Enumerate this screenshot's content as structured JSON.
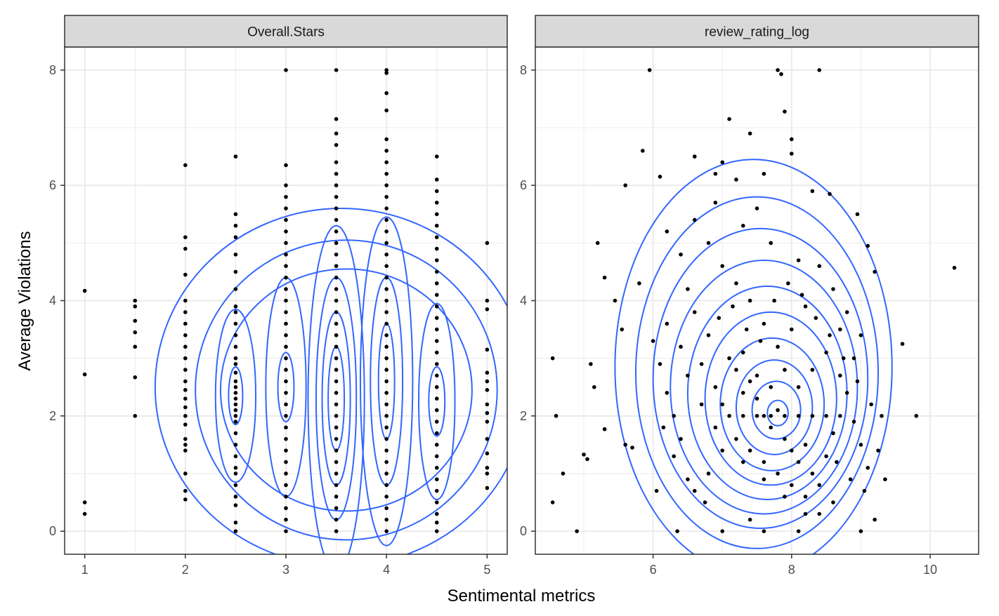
{
  "chart_data": {
    "type": "scatter",
    "xlabel": "Sentimental metrics",
    "ylabel": "Average Violations",
    "grid": true,
    "colors": {
      "points": "#000000",
      "contours": "#3366ff",
      "strip_fill": "#d9d9d9",
      "grid": "#ebebeb",
      "panel_border": "#333333"
    },
    "panels": [
      {
        "strip": "Overall.Stars",
        "xlim": [
          0.8,
          5.2
        ],
        "ylim": [
          -0.4,
          8.4
        ],
        "x_ticks": [
          1,
          2,
          3,
          4,
          5
        ],
        "x_tick_labels": [
          "1",
          "2",
          "3",
          "4",
          "5"
        ],
        "y_ticks": [
          0,
          2,
          4,
          6,
          8
        ],
        "y_tick_labels": [
          "0",
          "2",
          "4",
          "6",
          "8"
        ],
        "columns": [
          {
            "x": 1,
            "y": [
              4.17,
              2.72,
              0.5,
              0.3
            ]
          },
          {
            "x": 1.5,
            "y": [
              4.0,
              3.9,
              3.65,
              3.45,
              3.2,
              2.67,
              2.0
            ]
          },
          {
            "x": 2,
            "y": [
              6.35,
              5.1,
              4.9,
              4.45,
              4.0,
              3.8,
              3.6,
              3.4,
              3.2,
              3.0,
              2.8,
              2.6,
              2.45,
              2.3,
              2.15,
              2.0,
              1.85,
              1.6,
              1.5,
              1.4,
              1.0,
              0.7,
              0.55
            ]
          },
          {
            "x": 2.5,
            "y": [
              6.5,
              5.5,
              5.3,
              5.1,
              4.8,
              4.5,
              4.2,
              3.9,
              3.8,
              3.6,
              3.4,
              3.2,
              3.0,
              2.9,
              2.75,
              2.6,
              2.5,
              2.4,
              2.3,
              2.2,
              2.1,
              2.0,
              1.9,
              1.7,
              1.5,
              1.3,
              1.1,
              1.0,
              0.8,
              0.6,
              0.45,
              0.15,
              0.0
            ]
          },
          {
            "x": 3,
            "y": [
              8.0,
              6.35,
              6.0,
              5.8,
              5.6,
              5.4,
              5.2,
              5.0,
              4.8,
              4.6,
              4.4,
              4.2,
              4.0,
              3.8,
              3.6,
              3.4,
              3.2,
              3.0,
              2.8,
              2.6,
              2.4,
              2.2,
              2.0,
              1.8,
              1.6,
              1.4,
              1.2,
              1.0,
              0.8,
              0.6,
              0.4,
              0.2,
              0.0
            ]
          },
          {
            "x": 3.5,
            "y": [
              8.0,
              7.15,
              6.9,
              6.7,
              6.4,
              6.2,
              6.0,
              5.8,
              5.6,
              5.4,
              5.2,
              5.0,
              4.8,
              4.6,
              4.4,
              4.2,
              4.0,
              3.8,
              3.6,
              3.4,
              3.2,
              3.0,
              2.8,
              2.6,
              2.4,
              2.2,
              2.0,
              1.8,
              1.6,
              1.4,
              1.2,
              1.0,
              0.8,
              0.6,
              0.4,
              0.2,
              0.0
            ]
          },
          {
            "x": 4,
            "y": [
              8.0,
              7.95,
              7.6,
              7.3,
              6.8,
              6.6,
              6.4,
              6.2,
              6.0,
              5.8,
              5.6,
              5.4,
              5.2,
              5.0,
              4.8,
              4.6,
              4.4,
              4.2,
              4.0,
              3.8,
              3.6,
              3.4,
              3.2,
              3.0,
              2.8,
              2.6,
              2.4,
              2.2,
              2.0,
              1.8,
              1.6,
              1.4,
              1.2,
              1.0,
              0.8,
              0.6,
              0.4,
              0.2,
              0.0
            ]
          },
          {
            "x": 4.5,
            "y": [
              6.5,
              6.1,
              5.9,
              5.7,
              5.5,
              5.3,
              5.1,
              4.9,
              4.7,
              4.5,
              4.3,
              4.1,
              3.9,
              3.7,
              3.5,
              3.3,
              3.1,
              2.9,
              2.7,
              2.5,
              2.3,
              2.1,
              1.9,
              1.7,
              1.5,
              1.3,
              1.1,
              0.9,
              0.7,
              0.5,
              0.3,
              0.15,
              0.0
            ]
          },
          {
            "x": 5,
            "y": [
              5.0,
              4.0,
              3.85,
              3.15,
              2.75,
              2.6,
              2.45,
              2.2,
              2.05,
              1.9,
              1.6,
              1.35,
              1.1,
              1.0,
              0.75
            ]
          }
        ],
        "contours": [
          {
            "cx": 3.55,
            "cy": 2.5,
            "rx": 1.85,
            "ry": 3.1
          },
          {
            "cx": 3.6,
            "cy": 2.45,
            "rx": 1.5,
            "ry": 2.6
          },
          {
            "cx": 3.6,
            "cy": 2.45,
            "rx": 1.25,
            "ry": 2.1
          },
          {
            "cx": 2.5,
            "cy": 2.35,
            "rx": 0.2,
            "ry": 1.5
          },
          {
            "cx": 2.5,
            "cy": 2.35,
            "rx": 0.07,
            "ry": 0.5
          },
          {
            "cx": 3.0,
            "cy": 2.5,
            "rx": 0.2,
            "ry": 1.9
          },
          {
            "cx": 3.0,
            "cy": 2.5,
            "rx": 0.08,
            "ry": 0.6
          },
          {
            "cx": 3.5,
            "cy": 2.3,
            "rx": 0.28,
            "ry": 3.0
          },
          {
            "cx": 3.5,
            "cy": 2.3,
            "rx": 0.2,
            "ry": 2.1
          },
          {
            "cx": 3.5,
            "cy": 2.3,
            "rx": 0.14,
            "ry": 1.5
          },
          {
            "cx": 3.5,
            "cy": 2.3,
            "rx": 0.08,
            "ry": 0.9
          },
          {
            "cx": 4.0,
            "cy": 2.6,
            "rx": 0.26,
            "ry": 2.85
          },
          {
            "cx": 4.0,
            "cy": 2.6,
            "rx": 0.16,
            "ry": 1.8
          },
          {
            "cx": 4.0,
            "cy": 2.6,
            "rx": 0.08,
            "ry": 1.0
          },
          {
            "cx": 4.5,
            "cy": 2.25,
            "rx": 0.18,
            "ry": 1.7
          },
          {
            "cx": 4.5,
            "cy": 2.25,
            "rx": 0.08,
            "ry": 0.6
          }
        ]
      },
      {
        "strip": "review_rating_log",
        "xlim": [
          4.3,
          10.7
        ],
        "ylim": [
          -0.4,
          8.4
        ],
        "x_ticks": [
          6,
          8,
          10
        ],
        "x_tick_labels": [
          "6",
          "8",
          "10"
        ],
        "y_ticks": [
          0,
          2,
          4,
          6,
          8
        ],
        "y_tick_labels": [
          "0",
          "2",
          "4",
          "6",
          "8"
        ],
        "points": [
          [
            5.95,
            8.0
          ],
          [
            7.8,
            8.0
          ],
          [
            7.85,
            7.93
          ],
          [
            8.4,
            8.0
          ],
          [
            7.1,
            7.15
          ],
          [
            7.9,
            7.28
          ],
          [
            7.4,
            6.9
          ],
          [
            8.0,
            6.8
          ],
          [
            8.0,
            6.55
          ],
          [
            5.85,
            6.6
          ],
          [
            5.6,
            6.0
          ],
          [
            6.1,
            6.15
          ],
          [
            8.3,
            5.9
          ],
          [
            8.55,
            5.85
          ],
          [
            10.35,
            4.57
          ],
          [
            5.2,
            5.0
          ],
          [
            4.55,
            3.0
          ],
          [
            4.6,
            2.0
          ],
          [
            4.55,
            0.5
          ],
          [
            4.7,
            1.0
          ],
          [
            4.9,
            0.0
          ],
          [
            5.05,
            1.25
          ],
          [
            5.0,
            1.33
          ],
          [
            5.3,
            1.77
          ],
          [
            5.6,
            1.5
          ],
          [
            5.7,
            1.45
          ],
          [
            6.05,
            0.7
          ],
          [
            6.35,
            0.0
          ],
          [
            9.8,
            2.0
          ],
          [
            9.6,
            3.25
          ],
          [
            9.35,
            0.9
          ],
          [
            9.2,
            0.2
          ],
          [
            9.0,
            0.0
          ],
          [
            8.95,
            5.5
          ],
          [
            9.1,
            4.95
          ],
          [
            9.2,
            4.5
          ],
          [
            6.6,
            6.5
          ],
          [
            6.9,
            6.2
          ],
          [
            7.0,
            6.4
          ],
          [
            7.2,
            6.1
          ],
          [
            7.5,
            5.6
          ],
          [
            7.6,
            6.2
          ],
          [
            5.3,
            4.4
          ],
          [
            5.45,
            4.0
          ],
          [
            5.55,
            3.5
          ],
          [
            5.1,
            2.9
          ],
          [
            5.15,
            2.5
          ],
          [
            5.8,
            4.3
          ],
          [
            6.2,
            5.2
          ],
          [
            6.4,
            4.8
          ],
          [
            6.5,
            4.2
          ],
          [
            6.6,
            3.8
          ],
          [
            6.8,
            3.4
          ],
          [
            6.7,
            2.9
          ],
          [
            6.9,
            2.5
          ],
          [
            7.0,
            2.2
          ],
          [
            7.2,
            2.8
          ],
          [
            7.3,
            3.1
          ],
          [
            7.4,
            2.6
          ],
          [
            7.5,
            2.3
          ],
          [
            7.6,
            2.0
          ],
          [
            7.7,
            1.8
          ],
          [
            7.8,
            2.1
          ],
          [
            7.9,
            1.6
          ],
          [
            8.0,
            1.4
          ],
          [
            8.1,
            1.2
          ],
          [
            8.2,
            1.5
          ],
          [
            8.3,
            1.0
          ],
          [
            8.4,
            0.8
          ],
          [
            8.5,
            1.3
          ],
          [
            8.6,
            1.7
          ],
          [
            8.7,
            2.0
          ],
          [
            8.8,
            2.4
          ],
          [
            8.9,
            1.9
          ],
          [
            9.0,
            1.5
          ],
          [
            9.1,
            1.1
          ],
          [
            8.6,
            0.5
          ],
          [
            8.2,
            0.3
          ],
          [
            7.9,
            0.6
          ],
          [
            7.6,
            0.9
          ],
          [
            7.3,
            1.2
          ],
          [
            7.0,
            1.4
          ],
          [
            6.8,
            1.0
          ],
          [
            6.6,
            0.7
          ],
          [
            6.4,
            1.6
          ],
          [
            6.3,
            2.0
          ],
          [
            6.2,
            2.4
          ],
          [
            6.1,
            2.9
          ],
          [
            6.0,
            3.3
          ],
          [
            6.2,
            3.6
          ],
          [
            6.4,
            3.2
          ],
          [
            6.5,
            2.7
          ],
          [
            6.7,
            2.2
          ],
          [
            6.9,
            1.8
          ],
          [
            7.1,
            2.0
          ],
          [
            7.3,
            2.0
          ],
          [
            7.5,
            2.0
          ],
          [
            7.7,
            2.0
          ],
          [
            7.9,
            2.0
          ],
          [
            8.1,
            2.0
          ],
          [
            8.3,
            2.0
          ],
          [
            8.5,
            2.0
          ],
          [
            8.7,
            2.7
          ],
          [
            8.9,
            3.0
          ],
          [
            9.0,
            3.4
          ],
          [
            8.8,
            3.8
          ],
          [
            8.6,
            4.2
          ],
          [
            8.4,
            4.6
          ],
          [
            8.2,
            3.9
          ],
          [
            8.0,
            3.5
          ],
          [
            7.8,
            3.2
          ],
          [
            7.6,
            3.6
          ],
          [
            7.4,
            4.0
          ],
          [
            7.2,
            4.3
          ],
          [
            7.0,
            4.6
          ],
          [
            6.8,
            5.0
          ],
          [
            6.6,
            5.4
          ],
          [
            6.9,
            5.7
          ],
          [
            7.3,
            5.3
          ],
          [
            7.7,
            5.0
          ],
          [
            8.1,
            4.7
          ],
          [
            7.1,
            3.0
          ],
          [
            7.3,
            2.4
          ],
          [
            7.5,
            2.7
          ],
          [
            7.7,
            2.5
          ],
          [
            7.9,
            2.8
          ],
          [
            8.1,
            2.5
          ],
          [
            8.3,
            2.8
          ],
          [
            8.5,
            3.1
          ],
          [
            8.7,
            3.5
          ],
          [
            7.2,
            1.6
          ],
          [
            7.4,
            1.4
          ],
          [
            7.6,
            1.2
          ],
          [
            7.8,
            1.0
          ],
          [
            8.0,
            0.8
          ],
          [
            8.2,
            0.6
          ],
          [
            8.4,
            0.3
          ],
          [
            7.4,
            0.2
          ],
          [
            7.0,
            0.0
          ],
          [
            7.6,
            0.0
          ],
          [
            8.1,
            0.0
          ],
          [
            6.75,
            0.5
          ],
          [
            6.5,
            0.9
          ],
          [
            6.3,
            1.3
          ],
          [
            6.15,
            1.8
          ],
          [
            6.95,
            3.7
          ],
          [
            7.15,
            3.9
          ],
          [
            7.35,
            3.5
          ],
          [
            7.55,
            3.3
          ],
          [
            7.75,
            4.0
          ],
          [
            7.95,
            4.3
          ],
          [
            8.15,
            4.1
          ],
          [
            8.35,
            3.7
          ],
          [
            8.55,
            3.4
          ],
          [
            8.75,
            3.0
          ],
          [
            8.95,
            2.6
          ],
          [
            9.15,
            2.2
          ],
          [
            9.3,
            2.0
          ],
          [
            9.25,
            1.4
          ],
          [
            9.05,
            0.7
          ],
          [
            8.85,
            0.9
          ],
          [
            8.65,
            1.2
          ]
        ],
        "contours": [
          {
            "cx": 7.45,
            "cy": 2.85,
            "rx": 2.0,
            "ry": 3.6
          },
          {
            "cx": 7.5,
            "cy": 2.75,
            "rx": 1.75,
            "ry": 3.05
          },
          {
            "cx": 7.55,
            "cy": 2.65,
            "rx": 1.55,
            "ry": 2.6
          },
          {
            "cx": 7.6,
            "cy": 2.5,
            "rx": 1.35,
            "ry": 2.2
          },
          {
            "cx": 7.65,
            "cy": 2.4,
            "rx": 1.15,
            "ry": 1.85
          },
          {
            "cx": 7.7,
            "cy": 2.3,
            "rx": 0.95,
            "ry": 1.5
          },
          {
            "cx": 7.72,
            "cy": 2.2,
            "rx": 0.75,
            "ry": 1.15
          },
          {
            "cx": 7.75,
            "cy": 2.15,
            "rx": 0.55,
            "ry": 0.82
          },
          {
            "cx": 7.78,
            "cy": 2.1,
            "rx": 0.35,
            "ry": 0.5
          },
          {
            "cx": 7.8,
            "cy": 2.05,
            "rx": 0.15,
            "ry": 0.22
          }
        ]
      }
    ]
  }
}
